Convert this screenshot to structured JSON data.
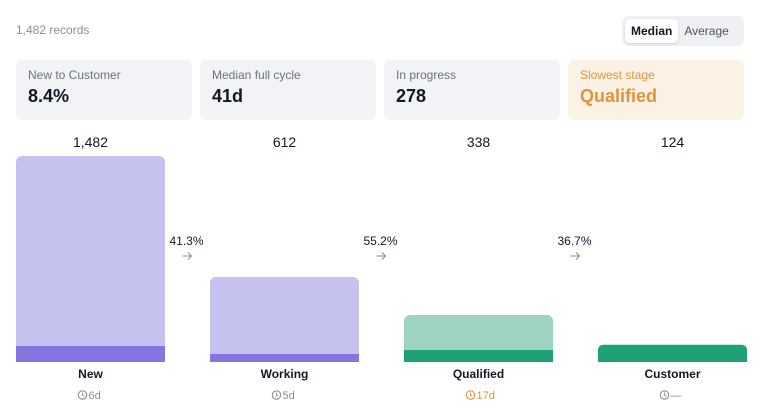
{
  "header": {
    "records_text": "1,482 records",
    "toggle": {
      "options": [
        "Median",
        "Average"
      ],
      "active": "Median"
    }
  },
  "kpis": [
    {
      "label": "New to Customer",
      "value": "8.4%"
    },
    {
      "label": "Median full cycle",
      "value": "41d"
    },
    {
      "label": "In progress",
      "value": "278"
    },
    {
      "label": "Slowest stage",
      "value": "Qualified"
    }
  ],
  "colors": {
    "purple_light": "#c6c2f0",
    "purple_dark": "#8476e0",
    "green_light": "#9fd5c0",
    "green_dark": "#1fa273",
    "warn": "#e0953a",
    "muted": "#8b8f98"
  },
  "chart_data": {
    "type": "bar",
    "categories": [
      "New",
      "Working",
      "Qualified",
      "Customer"
    ],
    "values": [
      1482,
      612,
      338,
      124
    ],
    "value_labels": [
      "1,482",
      "612",
      "338",
      "124"
    ],
    "conversions": [
      "41.3%",
      "55.2%",
      "36.7%"
    ],
    "durations": [
      "6d",
      "5d",
      "17d",
      "—"
    ],
    "slowest_index": 2,
    "ylim": [
      0,
      1482
    ]
  }
}
